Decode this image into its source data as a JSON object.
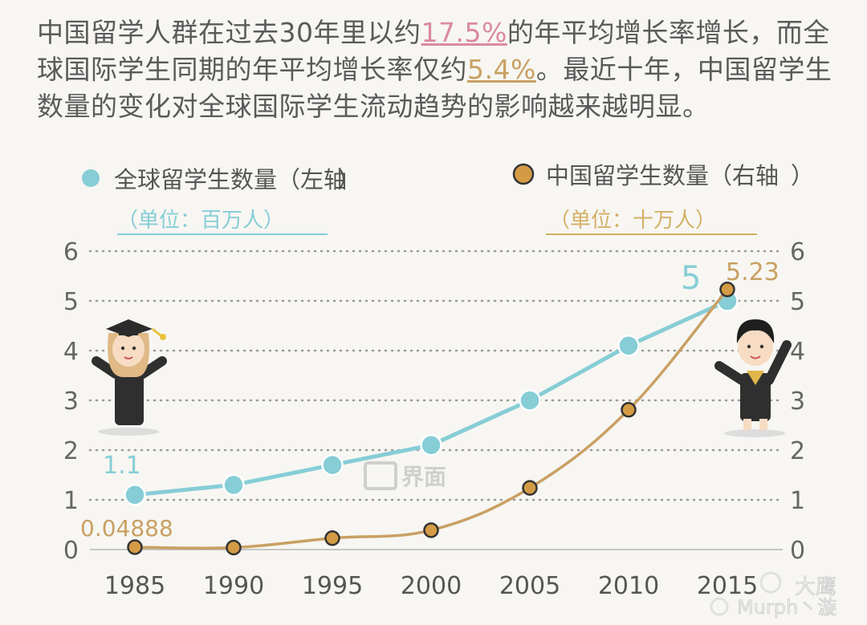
{
  "intro": {
    "p1": "中国留学人群在过去30年里以约",
    "rate_china": "17.5%",
    "p2": "的年平均增长率增长，而全球国际学生同期的年平均增长率仅约",
    "rate_global": "5.4%",
    "p3": "。最近十年，中国留学生数量的变化对全球国际学生流动趋势的影响越来越明显。"
  },
  "colors": {
    "global": "#86cdd6",
    "china": "#c9a063",
    "china_dot": "#d49b45",
    "grid": "#9a9a9a",
    "axis_text": "#666666"
  },
  "legend": {
    "global_label": "全球留学生数量（左轴",
    "global_paren": "）",
    "global_unit": "（单位：百万人）",
    "china_label": "中国留学生数量（右轴",
    "china_paren": "）",
    "china_unit": "（单位：十万人）"
  },
  "chart_data": {
    "type": "line",
    "x": [
      "1985",
      "1990",
      "1995",
      "2000",
      "2005",
      "2010",
      "2015"
    ],
    "series": [
      {
        "name": "全球留学生数量（左轴）",
        "axis": "left",
        "unit": "百万人",
        "values": [
          1.1,
          1.3,
          1.7,
          2.1,
          3.0,
          4.1,
          5.0
        ]
      },
      {
        "name": "中国留学生数量（右轴）",
        "axis": "right",
        "unit": "十万人",
        "values": [
          0.04888,
          0.04,
          0.23,
          0.39,
          1.24,
          2.81,
          5.23
        ]
      }
    ],
    "ylim_left": [
      0,
      6
    ],
    "ylim_right": [
      0,
      6
    ],
    "yticks": [
      "0",
      "1",
      "2",
      "3",
      "4",
      "5",
      "6"
    ],
    "annotations": {
      "global_first": "1.1",
      "global_last": "5",
      "china_first": "0.04888",
      "china_last": "5.23"
    },
    "grid": "dotted horizontal",
    "legend_position": "top"
  },
  "watermarks": {
    "center": "界面",
    "corner_top": "大鹰",
    "corner_bottom": "Murph丶漩"
  }
}
